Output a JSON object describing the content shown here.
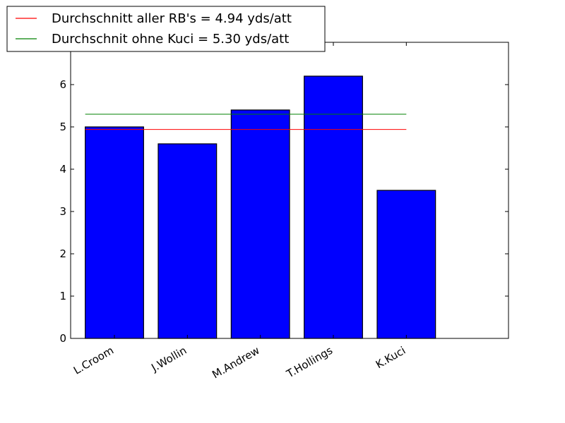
{
  "chart_data": {
    "type": "bar",
    "categories": [
      "L.Croom",
      "J.Wollin",
      "M.Andrew",
      "T.Hollings",
      "K.Kuci"
    ],
    "values": [
      5.0,
      4.6,
      5.4,
      6.2,
      3.5
    ],
    "ylim": [
      0,
      7
    ],
    "yticks": [
      0,
      1,
      2,
      3,
      4,
      5,
      6
    ],
    "bar_color": "#0000ff",
    "grid": false,
    "legend_position": "top-left",
    "reference_lines": [
      {
        "name": "Durchschnitt aller RB's = 4.94 yds/att",
        "value": 4.94,
        "color": "#ff0000"
      },
      {
        "name": "Durchschnit ohne Kuci = 5.30 yds/att",
        "value": 5.3,
        "color": "#008000"
      }
    ]
  }
}
